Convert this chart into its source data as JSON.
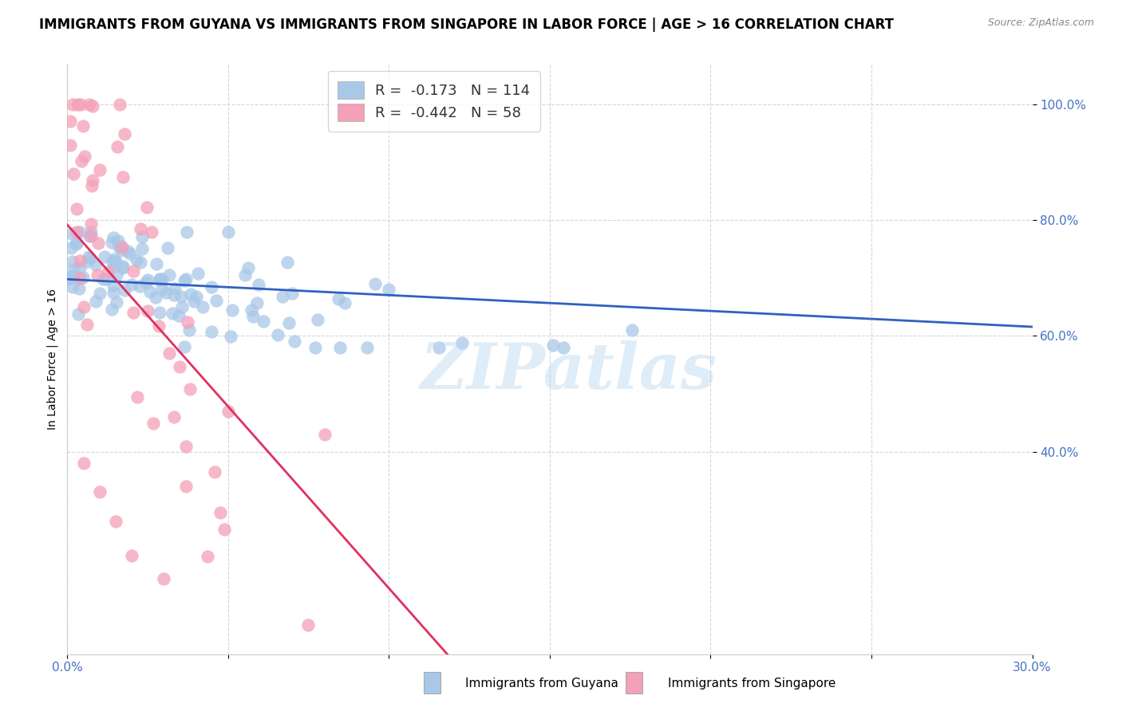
{
  "title": "IMMIGRANTS FROM GUYANA VS IMMIGRANTS FROM SINGAPORE IN LABOR FORCE | AGE > 16 CORRELATION CHART",
  "source": "Source: ZipAtlas.com",
  "ylabel": "In Labor Force | Age > 16",
  "xlim": [
    0.0,
    0.3
  ],
  "ylim": [
    0.05,
    1.07
  ],
  "guyana_color": "#a8c8e8",
  "singapore_color": "#f4a0b8",
  "guyana_line_color": "#3060c0",
  "singapore_line_color": "#e03060",
  "singapore_line_dashed_color": "#c8c8c8",
  "guyana_R": -0.173,
  "guyana_N": 114,
  "singapore_R": -0.442,
  "singapore_N": 58,
  "watermark": "ZIPatlas",
  "legend_label_guyana": "Immigrants from Guyana",
  "legend_label_singapore": "Immigrants from Singapore",
  "background_color": "#ffffff",
  "grid_color": "#cccccc",
  "tick_color": "#4472c4",
  "title_fontsize": 12,
  "axis_fontsize": 11,
  "legend_fontsize": 13
}
